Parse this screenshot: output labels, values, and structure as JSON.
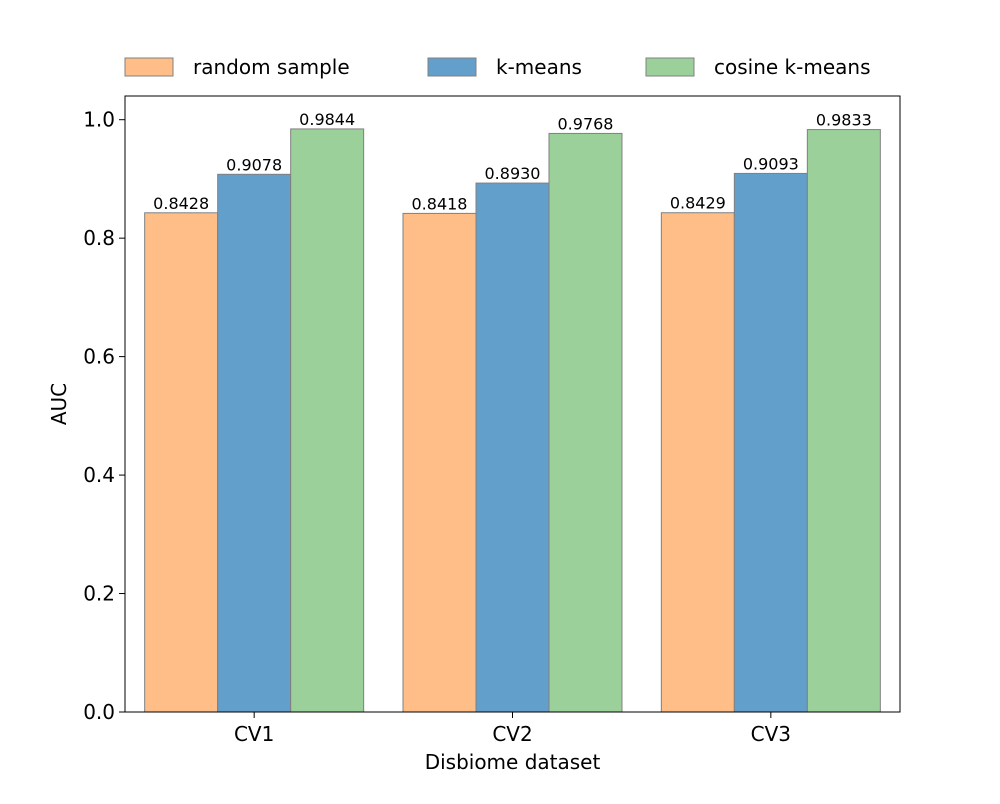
{
  "chart_data": {
    "type": "bar",
    "categories": [
      "CV1",
      "CV2",
      "CV3"
    ],
    "series": [
      {
        "name": "random sample",
        "values": [
          0.8428,
          0.8418,
          0.8429
        ],
        "labels": [
          "0.8428",
          "0.8418",
          "0.8429"
        ],
        "color": "#ffbe87"
      },
      {
        "name": "k-means",
        "values": [
          0.9078,
          0.893,
          0.9093
        ],
        "labels": [
          "0.9078",
          "0.8930",
          "0.9093"
        ],
        "color": "#629fca"
      },
      {
        "name": "cosine k-means",
        "values": [
          0.9844,
          0.9768,
          0.9833
        ],
        "labels": [
          "0.9844",
          "0.9768",
          "0.9833"
        ],
        "color": "#9bd09a"
      }
    ],
    "xlabel": "Disbiome dataset",
    "ylabel": "AUC",
    "ylim": [
      0,
      1.04
    ],
    "yticks": [
      0.0,
      0.2,
      0.4,
      0.6,
      0.8,
      1.0
    ],
    "ytick_labels": [
      "0.0",
      "0.2",
      "0.4",
      "0.6",
      "0.8",
      "1.0"
    ],
    "grid": false,
    "legend_position": "top"
  }
}
